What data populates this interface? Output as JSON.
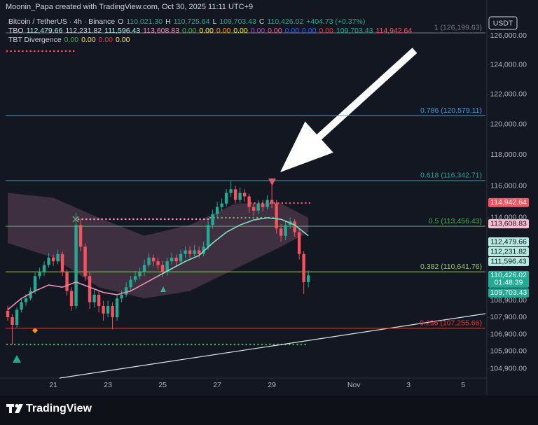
{
  "header": {
    "credit": "Moonin_Papa created with TradingView.com, Oct 30, 2025 11:11 UTC+9"
  },
  "legend": {
    "rows": [
      [
        {
          "text": "Bitcoin / TetherUS · 4h · Binance",
          "color": "#d1d4dc"
        },
        {
          "text": "O",
          "color": "#d1d4dc"
        },
        {
          "text": "110,021.30",
          "color": "#22ab94"
        },
        {
          "text": "H",
          "color": "#d1d4dc"
        },
        {
          "text": "110,725.64",
          "color": "#22ab94"
        },
        {
          "text": "L",
          "color": "#d1d4dc"
        },
        {
          "text": "109,703.43",
          "color": "#22ab94"
        },
        {
          "text": "C",
          "color": "#d1d4dc"
        },
        {
          "text": "110,426.02",
          "color": "#22ab94"
        },
        {
          "text": "+404.73 (+0.37%)",
          "color": "#22ab94"
        }
      ],
      [
        {
          "text": "TBO",
          "color": "#d1d4dc"
        },
        {
          "text": "112,479.66",
          "color": "#b2ebe0"
        },
        {
          "text": "112,231.82",
          "color": "#d1d4dc"
        },
        {
          "text": "111,596.43",
          "color": "#b2ebe0"
        },
        {
          "text": "113,608.83",
          "color": "#f48fb1"
        },
        {
          "text": "0.00",
          "color": "#4caf50"
        },
        {
          "text": "0.00",
          "color": "#ffeb3b"
        },
        {
          "text": "0.00",
          "color": "#ff9800"
        },
        {
          "text": "0.00",
          "color": "#ffeb3b"
        },
        {
          "text": "0.00",
          "color": "#ab47bc"
        },
        {
          "text": "0.00",
          "color": "#f06292"
        },
        {
          "text": "0.00",
          "color": "#2962ff"
        },
        {
          "text": "0.00",
          "color": "#2962ff"
        },
        {
          "text": "0.00",
          "color": "#f23645"
        },
        {
          "text": "109,703.43",
          "color": "#22ab94"
        },
        {
          "text": "114,942.64",
          "color": "#f7525f"
        }
      ],
      [
        {
          "text": "TBT Divergence",
          "color": "#d1d4dc"
        },
        {
          "text": "0.00",
          "color": "#4caf50"
        },
        {
          "text": "0.00",
          "color": "#ffeb3b"
        },
        {
          "text": "0.00",
          "color": "#f23645"
        },
        {
          "text": "0.00",
          "color": "#ffeb3b"
        }
      ]
    ]
  },
  "chart_data": {
    "type": "candlestick",
    "currency": "USDT",
    "log_scale": true,
    "up_color": "#22ab94",
    "down_color": "#f7525f",
    "ylim": [
      104357,
      128504
    ],
    "yticks": [
      {
        "value": 126000,
        "label": "126,000.00"
      },
      {
        "value": 124000,
        "label": "124,000.00"
      },
      {
        "value": 122000,
        "label": "122,000.00"
      },
      {
        "value": 120000,
        "label": "120,000.00"
      },
      {
        "value": 118000,
        "label": "118,000.00"
      },
      {
        "value": 116000,
        "label": "116,000.00"
      },
      {
        "value": 114000,
        "label": "114,000.00"
      },
      {
        "value": 108900,
        "label": "108,900.00"
      },
      {
        "value": 107900,
        "label": "107,900.00"
      },
      {
        "value": 106900,
        "label": "106,900.00"
      },
      {
        "value": 105900,
        "label": "105,900.00"
      },
      {
        "value": 104900,
        "label": "104,900.00"
      }
    ],
    "xlim": [
      -1.7,
      105.2
    ],
    "xticks": [
      {
        "value": 10,
        "label": "21"
      },
      {
        "value": 22,
        "label": "23"
      },
      {
        "value": 34,
        "label": "25"
      },
      {
        "value": 46,
        "label": "27"
      },
      {
        "value": 58,
        "label": "29"
      },
      {
        "value": 76,
        "label": "Nov"
      },
      {
        "value": 88,
        "label": "3"
      },
      {
        "value": 100,
        "label": "5"
      }
    ],
    "ohlc": [
      [
        108300,
        108600,
        107700,
        107910
      ],
      [
        107910,
        108100,
        106300,
        107460
      ],
      [
        107460,
        108500,
        107300,
        108360
      ],
      [
        108360,
        109000,
        108200,
        108810
      ],
      [
        108810,
        109300,
        108600,
        109035
      ],
      [
        109035,
        109700,
        108900,
        109485
      ],
      [
        109485,
        110600,
        109300,
        110385
      ],
      [
        110385,
        110900,
        110200,
        110610
      ],
      [
        110610,
        111300,
        110400,
        111060
      ],
      [
        111060,
        111800,
        110900,
        111510
      ],
      [
        111510,
        111700,
        111000,
        111285
      ],
      [
        111285,
        112000,
        111100,
        111735
      ],
      [
        111735,
        111900,
        110400,
        110610
      ],
      [
        110610,
        110800,
        109200,
        109485
      ],
      [
        109485,
        109700,
        108300,
        108585
      ],
      [
        108585,
        114300,
        108400,
        113535
      ],
      [
        113535,
        113900,
        111900,
        112185
      ],
      [
        112185,
        112400,
        110100,
        110385
      ],
      [
        110385,
        110600,
        108400,
        108810
      ],
      [
        108810,
        109600,
        108500,
        109260
      ],
      [
        109260,
        109500,
        108200,
        108585
      ],
      [
        108585,
        108900,
        107700,
        108135
      ],
      [
        108135,
        108900,
        107900,
        108585
      ],
      [
        108585,
        108800,
        107200,
        107910
      ],
      [
        107910,
        109300,
        107700,
        109035
      ],
      [
        109035,
        109500,
        108800,
        109260
      ],
      [
        109260,
        110000,
        109100,
        109710
      ],
      [
        109710,
        110400,
        109500,
        110160
      ],
      [
        110160,
        110700,
        110000,
        110385
      ],
      [
        110385,
        110900,
        110200,
        110610
      ],
      [
        110610,
        111400,
        110400,
        111060
      ],
      [
        111060,
        111800,
        110900,
        111510
      ],
      [
        111510,
        111700,
        111000,
        111285
      ],
      [
        111285,
        111500,
        110800,
        111060
      ],
      [
        111060,
        111300,
        110300,
        110610
      ],
      [
        110610,
        111500,
        110400,
        111285
      ],
      [
        111285,
        111800,
        111100,
        111510
      ],
      [
        111510,
        111700,
        111000,
        111285
      ],
      [
        111285,
        112000,
        111100,
        111735
      ],
      [
        111735,
        112200,
        111500,
        111960
      ],
      [
        111960,
        112200,
        111500,
        111735
      ],
      [
        111735,
        112300,
        111600,
        111960
      ],
      [
        111960,
        112200,
        111500,
        111735
      ],
      [
        111735,
        112500,
        111600,
        112185
      ],
      [
        112185,
        113800,
        112000,
        113535
      ],
      [
        113535,
        114500,
        113300,
        114210
      ],
      [
        114210,
        115000,
        114000,
        114660
      ],
      [
        114660,
        115200,
        114400,
        114885
      ],
      [
        114885,
        115800,
        114700,
        115560
      ],
      [
        115560,
        116300,
        115300,
        115785
      ],
      [
        115785,
        116000,
        114900,
        115110
      ],
      [
        115110,
        115900,
        114900,
        115560
      ],
      [
        115560,
        115800,
        115000,
        115335
      ],
      [
        115335,
        115500,
        114300,
        114660
      ],
      [
        114660,
        114900,
        114100,
        114435
      ],
      [
        114435,
        115100,
        114200,
        114885
      ],
      [
        114885,
        115100,
        114400,
        114660
      ],
      [
        114660,
        115400,
        114500,
        115110
      ],
      [
        115110,
        116500,
        114600,
        114885
      ],
      [
        114885,
        115100,
        113000,
        113310
      ],
      [
        113310,
        113600,
        112500,
        112860
      ],
      [
        112860,
        113800,
        112600,
        113535
      ],
      [
        113535,
        114000,
        113300,
        113760
      ],
      [
        113760,
        113900,
        112800,
        113085
      ],
      [
        113085,
        113300,
        111400,
        111735
      ],
      [
        111735,
        111900,
        109300,
        110021.3
      ],
      [
        110021.3,
        110725.64,
        109703.43,
        110426.02
      ]
    ],
    "ma": [
      {
        "color": "#f48fb1",
        "x": [
          0,
          3,
          6,
          9,
          12,
          15,
          18,
          21,
          24,
          27,
          30,
          33
        ],
        "values": [
          108360,
          109035,
          109485,
          109845,
          109710,
          110025,
          109710,
          109395,
          109260,
          109485,
          109935,
          110385
        ]
      },
      {
        "color": "#7fe0c8",
        "x": [
          33,
          36,
          39,
          42,
          45,
          48,
          51,
          54,
          57,
          60,
          63,
          66
        ],
        "values": [
          110385,
          110835,
          111285,
          111645,
          112410,
          113085,
          113535,
          113850,
          113985,
          113895,
          113535,
          112860
        ]
      }
    ],
    "band": {
      "color": "rgba(240,150,190,0.2)",
      "x": [
        0,
        10,
        20,
        30,
        40,
        50,
        60,
        66
      ],
      "upper": [
        115560,
        115245,
        113985,
        112860,
        113535,
        114885,
        114885,
        113985
      ],
      "lower": [
        112410,
        111510,
        109710,
        109035,
        109485,
        110835,
        112185,
        113085
      ]
    },
    "fib": [
      {
        "value": 126199.63,
        "label": "1 (126,199.63)",
        "color": "#787b86"
      },
      {
        "value": 120579.11,
        "label": "0.786 (120,579.11)",
        "color": "#4f9bd4"
      },
      {
        "value": 116342.71,
        "label": "0.618 (116,342.71)",
        "color": "#26a69a"
      },
      {
        "value": 113456.43,
        "label": "0.5 (113,456.43)",
        "color": "#4caf50"
      },
      {
        "value": 110641.76,
        "label": "0.382 (110,641.76)",
        "color": "#9ccc65"
      },
      {
        "value": 107255.66,
        "label": "0.236 (107,255.66)",
        "color": "#e53935"
      }
    ],
    "price_tags": [
      {
        "value": 114942.64,
        "label": "114,942.64",
        "color": "#f7525f",
        "text_color": "#ffffff"
      },
      {
        "value": 113608.83,
        "label": "113,608.83",
        "color": "#f8bbd0",
        "text_color": "#131722"
      },
      {
        "value": 112479.66,
        "label": "112,479.66",
        "color": "#b2ebe0",
        "text_color": "#131722"
      },
      {
        "value": 112231.82,
        "label": "112,231.82",
        "color": "#b2ebe0",
        "text_color": "#131722"
      },
      {
        "value": 111596.43,
        "label": "111,596.43",
        "color": "#b2ebe0",
        "text_color": "#131722"
      },
      {
        "value": 110426.02,
        "label": "110,426.02",
        "countdown": "01:48:39",
        "color": "#22ab94",
        "text_color": "#ffffff"
      },
      {
        "value": 109703.43,
        "label": "109,703.43",
        "color": "#22ab94",
        "text_color": "#ffffff"
      }
    ]
  },
  "footer": {
    "brand": "TradingView"
  }
}
